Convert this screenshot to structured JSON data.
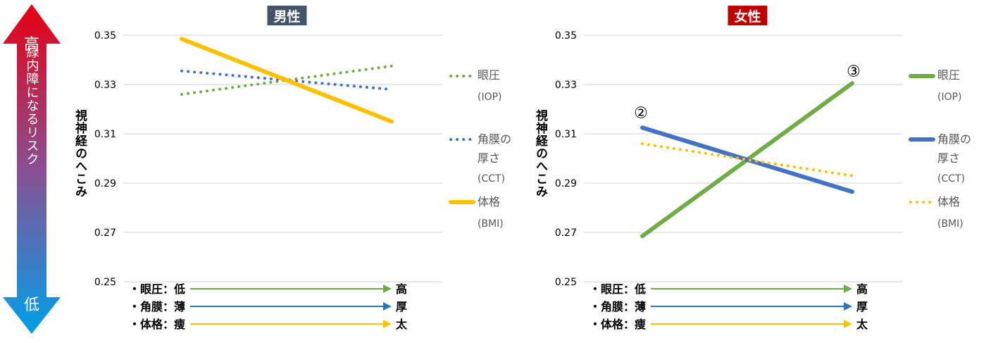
{
  "risk_arrow": {
    "top_label": "高",
    "middle_label": "緑内障になるリスク",
    "bottom_label": "低",
    "colors": {
      "top": "#e60012",
      "bottom": "#00a0e9"
    }
  },
  "legend_items": [
    {
      "name": "眼圧",
      "abbr": "(IOP)",
      "color": "#70ad47"
    },
    {
      "name": "角膜の厚さ",
      "abbr": "(CCT)",
      "color": "#4472c4"
    },
    {
      "name": "体格",
      "abbr": "(BMI)",
      "color": "#ffc000"
    }
  ],
  "conditions": [
    {
      "label": "・眼圧：低",
      "end": "高",
      "color": "#70ad47"
    },
    {
      "label": "・角膜：薄",
      "end": "厚",
      "color": "#2e75b6"
    },
    {
      "label": "・体格：痩",
      "end": "太",
      "color": "#ffc000"
    }
  ],
  "chart_data": [
    {
      "type": "line",
      "title": "男性",
      "title_bg": "#44546a",
      "ylabel": "視神経のへこみ",
      "ylim": [
        0.25,
        0.35
      ],
      "yticks": [
        "0.35",
        "0.33",
        "0.31",
        "0.29",
        "0.27",
        "0.25"
      ],
      "x": [
        "低/薄/痩",
        "高/厚/太"
      ],
      "grid": true,
      "legend_position": "right",
      "series": [
        {
          "name": "眼圧 (IOP)",
          "values": [
            0.326,
            0.3375
          ],
          "style": "dotted",
          "color": "#70ad47"
        },
        {
          "name": "角膜の厚さ (CCT)",
          "values": [
            0.3355,
            0.328
          ],
          "style": "dotted",
          "color": "#4472c4"
        },
        {
          "name": "体格 (BMI)",
          "values": [
            0.3485,
            0.315
          ],
          "style": "solid",
          "color": "#ffc000"
        }
      ],
      "annotations": []
    },
    {
      "type": "line",
      "title": "女性",
      "title_bg": "#c00000",
      "ylabel": "視神経のへこみ",
      "ylim": [
        0.25,
        0.35
      ],
      "yticks": [
        "0.35",
        "0.33",
        "0.31",
        "0.29",
        "0.27",
        "0.25"
      ],
      "x": [
        "低/薄/痩",
        "高/厚/太"
      ],
      "grid": true,
      "legend_position": "right",
      "series": [
        {
          "name": "眼圧 (IOP)",
          "values": [
            0.2685,
            0.3305
          ],
          "style": "solid",
          "color": "#70ad47"
        },
        {
          "name": "角膜の厚さ (CCT)",
          "values": [
            0.3125,
            0.2865
          ],
          "style": "solid",
          "color": "#4472c4"
        },
        {
          "name": "体格 (BMI)",
          "values": [
            0.306,
            0.293
          ],
          "style": "dotted",
          "color": "#ffc000"
        }
      ],
      "annotations": [
        "②",
        "③"
      ]
    }
  ]
}
